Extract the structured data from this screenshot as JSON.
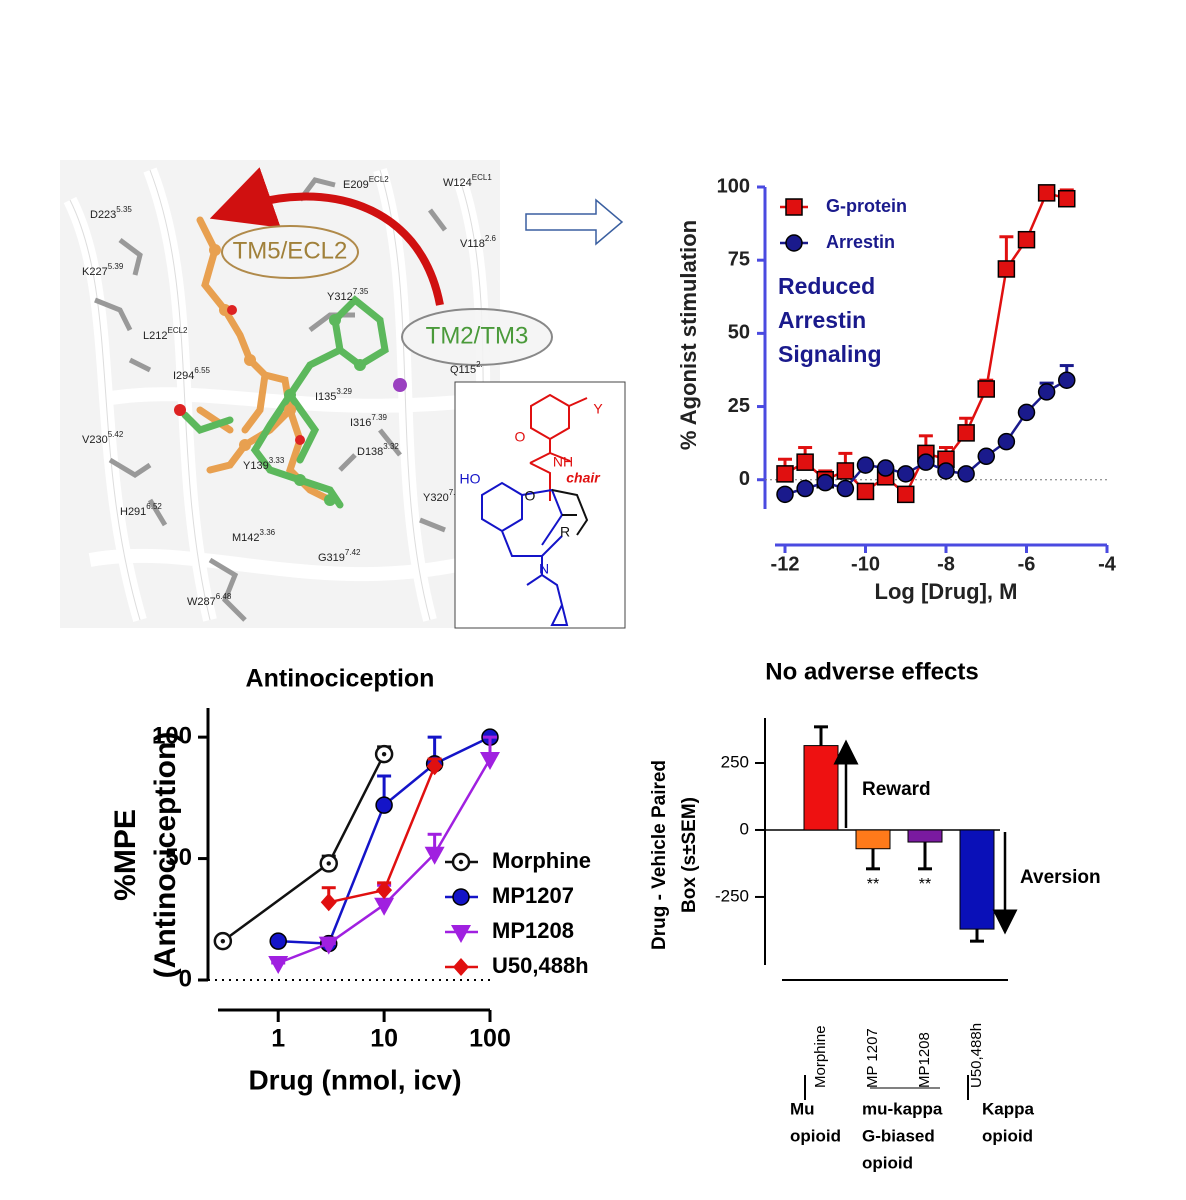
{
  "chart_data": [
    {
      "type": "line",
      "xlabel": "Log [Drug], M",
      "ylabel": "% Agonist stimulation",
      "annotation": [
        "Reduced",
        "Arrestin",
        "Signaling"
      ],
      "xlim": [
        -12,
        -4
      ],
      "xticks": [
        -12,
        -10,
        -8,
        -6,
        -4
      ],
      "ylim": [
        -10,
        100
      ],
      "yticks": [
        0,
        25,
        50,
        75,
        100
      ],
      "x": [
        -12,
        -11.5,
        -11,
        -10.5,
        -10,
        -9.5,
        -9,
        -8.5,
        -8,
        -7.5,
        -7,
        -6.5,
        -6,
        -5.5,
        -5
      ],
      "series": [
        {
          "name": "G-protein",
          "color": "#e01010",
          "marker": "square",
          "values": [
            2,
            6,
            0,
            3,
            -4,
            1,
            -5,
            9,
            7,
            16,
            31,
            72,
            82,
            98,
            96
          ],
          "errors": [
            5,
            5,
            3,
            6,
            0,
            0,
            0,
            6,
            4,
            5,
            3,
            11,
            2,
            1,
            3
          ]
        },
        {
          "name": "Arrestin",
          "color": "#1a1a8c",
          "marker": "circle",
          "values": [
            -5,
            -3,
            -1,
            -3,
            5,
            4,
            2,
            6,
            3,
            2,
            8,
            13,
            23,
            30,
            34
          ],
          "errors": [
            0,
            0,
            0,
            0,
            0,
            0,
            0,
            0,
            0,
            0,
            0,
            0,
            0,
            3,
            5
          ]
        }
      ]
    },
    {
      "type": "line",
      "title": "Antinociception",
      "xlabel": "Drug (nmol, icv)",
      "ylabel": [
        "%MPE",
        "(Antinociception)"
      ],
      "log_x": true,
      "xlim": [
        0.27,
        100
      ],
      "xticks": [
        1,
        10,
        100
      ],
      "ylim": [
        0,
        112
      ],
      "yticks": [
        0,
        50,
        100
      ],
      "series": [
        {
          "name": "Morphine",
          "color": "#111111",
          "marker": "open-dot",
          "x": [
            0.3,
            3,
            10
          ],
          "values": [
            16,
            48,
            93
          ],
          "errors": [
            0,
            3,
            3
          ]
        },
        {
          "name": "MP1207",
          "color": "#1414c8",
          "marker": "circle",
          "x": [
            1,
            3,
            10,
            30,
            100
          ],
          "values": [
            16,
            15,
            72,
            89,
            100
          ],
          "errors": [
            0,
            0,
            12,
            11,
            0
          ]
        },
        {
          "name": "MP1208",
          "color": "#a020e0",
          "marker": "triangle-down",
          "x": [
            1,
            3,
            10,
            30,
            100
          ],
          "values": [
            7,
            15,
            31,
            52,
            91
          ],
          "errors": [
            0,
            0,
            8,
            8,
            9
          ]
        },
        {
          "name": "U50,488h",
          "color": "#e01010",
          "marker": "diamond",
          "x": [
            3,
            10,
            30
          ],
          "values": [
            32,
            37,
            88
          ],
          "errors": [
            6,
            3,
            3
          ]
        }
      ]
    },
    {
      "type": "bar",
      "title": "No adverse effects",
      "ylabel": [
        "Drug - Vehicle Paired",
        "Box (s±SEM)"
      ],
      "categories": [
        "Morphine",
        "MP 1207",
        "MP1208",
        "U50,488h"
      ],
      "values": [
        315,
        -70,
        -45,
        -370
      ],
      "errors": [
        70,
        75,
        100,
        45
      ],
      "colors": [
        "#ee1111",
        "#ff7a1a",
        "#7a1aa0",
        "#0a10b8"
      ],
      "value_labels": [
        null,
        "**",
        "**",
        null
      ],
      "ylim": [
        -504,
        418
      ],
      "yticks": [
        250,
        0,
        -250
      ],
      "annotations": [
        "Reward",
        "Aversion"
      ],
      "groups": [
        [
          "Mu",
          "opioid"
        ],
        [
          "mu-kappa",
          "G-biased",
          "opioid"
        ],
        [
          "Kappa",
          "opioid"
        ]
      ]
    }
  ],
  "structure_panel": {
    "regions": [
      "TM5/ECL2",
      "TM2/TM3"
    ],
    "residues": [
      {
        "text": "D223",
        "sup": "5.35"
      },
      {
        "text": "E209",
        "sup": "ECL2"
      },
      {
        "text": "W124",
        "sup": "ECL1"
      },
      {
        "text": "K227",
        "sup": "5.39"
      },
      {
        "text": "V118",
        "sup": "2.6"
      },
      {
        "text": "Y312",
        "sup": "7.35"
      },
      {
        "text": "L212",
        "sup": "ECL2"
      },
      {
        "text": "Q115",
        "sup": "2."
      },
      {
        "text": "I294",
        "sup": "6.55"
      },
      {
        "text": "I135",
        "sup": "3.29"
      },
      {
        "text": "V230",
        "sup": "5.42"
      },
      {
        "text": "I316",
        "sup": "7.39"
      },
      {
        "text": "D138",
        "sup": "3.32"
      },
      {
        "text": "Y139",
        "sup": "3.33"
      },
      {
        "text": "Y320",
        "sup": "7."
      },
      {
        "text": "H291",
        "sup": "6.52"
      },
      {
        "text": "M142",
        "sup": "3.36"
      },
      {
        "text": "G319",
        "sup": "7.42"
      },
      {
        "text": "W287",
        "sup": "6.48"
      }
    ],
    "inset": {
      "y": "Y",
      "nh": "NH",
      "o_amide": "O",
      "ho": "HO",
      "o_ring": "O",
      "chair": "chair",
      "r": "R",
      "n": "N"
    }
  }
}
